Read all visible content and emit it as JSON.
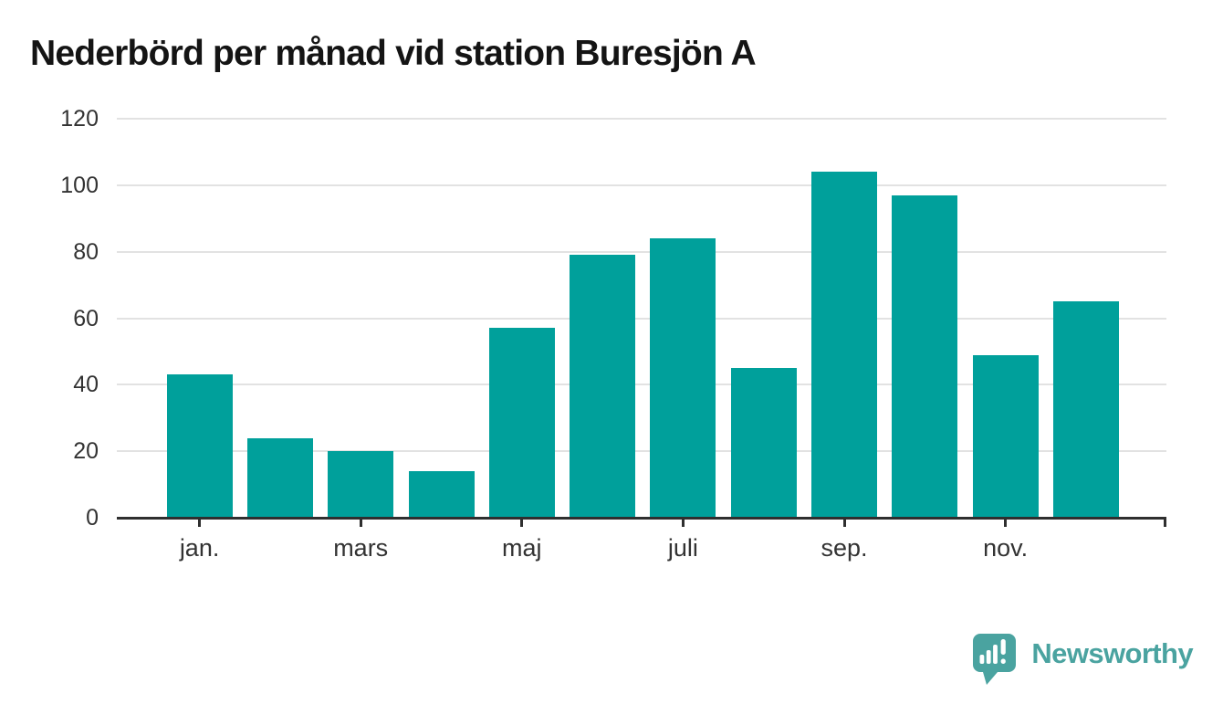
{
  "chart_data": {
    "type": "bar",
    "title": "Nederbörd per månad vid station Buresjön A",
    "categories": [
      "jan.",
      "",
      "mars",
      "",
      "maj",
      "",
      "juli",
      "",
      "sep.",
      "",
      "nov.",
      ""
    ],
    "values": [
      43,
      24,
      20,
      14,
      57,
      79,
      84,
      45,
      104,
      97,
      49,
      65
    ],
    "y_ticks": [
      0,
      20,
      40,
      60,
      80,
      100,
      120
    ],
    "ylim": [
      0,
      120
    ],
    "xlabel": "",
    "ylabel": "",
    "grid": true,
    "legend": "none",
    "bar_color": "#00a09b",
    "axis_color": "#2f2f2f",
    "grid_color": "#e2e2e2",
    "label_color": "#333333",
    "title_color": "#141414"
  },
  "branding": {
    "logo_text": "Newsworthy",
    "logo_color": "#4aa3a0",
    "logo_icon": "bar-chart-speech-bubble-icon"
  }
}
